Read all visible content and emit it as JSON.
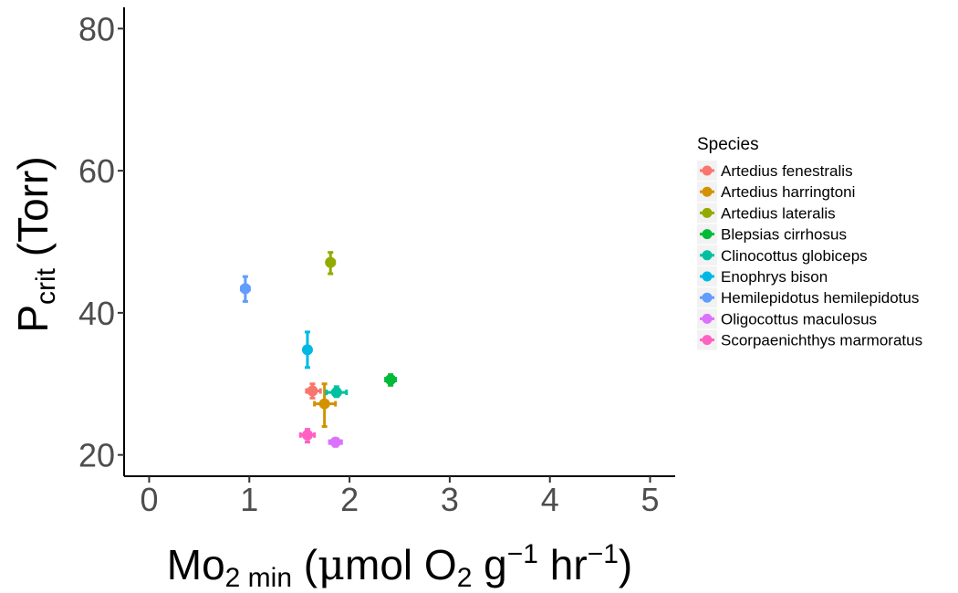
{
  "chart_data": {
    "type": "scatter",
    "xlabel": {
      "main": "Mo",
      "sub": "2 min",
      "rest1": " (",
      "mu": "μ",
      "rest2": "mol O",
      "o2sub": "2",
      "rest3": " g",
      "sup1": "−1",
      "rest4": " hr",
      "sup2": "−1",
      "close": ")"
    },
    "ylabel": {
      "main": "P",
      "sub": "crit",
      "rest": " (Torr)"
    },
    "xlim": [
      -0.25,
      5.25
    ],
    "ylim": [
      17,
      83
    ],
    "xticks": [
      0,
      1,
      2,
      3,
      4,
      5
    ],
    "yticks": [
      20,
      40,
      60,
      80
    ],
    "grid": false,
    "legend_title": "Species",
    "legend_position": "right",
    "series": [
      {
        "name": "Artedius fenestralis",
        "color": "#F8766D",
        "x": 1.63,
        "y": 29.0,
        "x_err": [
          1.57,
          1.71
        ],
        "y_err": [
          28.0,
          30.0
        ]
      },
      {
        "name": "Artedius harringtoni",
        "color": "#D39200",
        "x": 1.75,
        "y": 27.2,
        "x_err": [
          1.65,
          1.86
        ],
        "y_err": [
          24.0,
          30.0
        ]
      },
      {
        "name": "Artedius lateralis",
        "color": "#93AA00",
        "x": 1.81,
        "y": 47.1,
        "x_err": [
          1.78,
          1.85
        ],
        "y_err": [
          45.5,
          48.5
        ]
      },
      {
        "name": "Blepsias cirrhosus",
        "color": "#00BA38",
        "x": 2.41,
        "y": 30.6,
        "x_err": [
          2.36,
          2.46
        ],
        "y_err": [
          29.8,
          31.3
        ]
      },
      {
        "name": "Clinocottus globiceps",
        "color": "#00C19F",
        "x": 1.87,
        "y": 28.8,
        "x_err": [
          1.77,
          1.97
        ],
        "y_err": [
          28.2,
          29.6
        ]
      },
      {
        "name": "Enophrys bison",
        "color": "#00B9E3",
        "x": 1.58,
        "y": 34.8,
        "x_err": [
          1.55,
          1.61
        ],
        "y_err": [
          32.3,
          37.3
        ]
      },
      {
        "name": "Hemilepidotus hemilepidotus",
        "color": "#619CFF",
        "x": 0.96,
        "y": 43.4,
        "x_err": [
          0.92,
          1.0
        ],
        "y_err": [
          41.6,
          45.1
        ]
      },
      {
        "name": "Oligocottus maculosus",
        "color": "#DB72FB",
        "x": 1.86,
        "y": 21.8,
        "x_err": [
          1.8,
          1.92
        ],
        "y_err": [
          21.2,
          22.3
        ]
      },
      {
        "name": "Scorpaenichthys marmoratus",
        "color": "#FF61C3",
        "x": 1.58,
        "y": 22.8,
        "x_err": [
          1.51,
          1.65
        ],
        "y_err": [
          21.8,
          23.6
        ]
      }
    ]
  }
}
